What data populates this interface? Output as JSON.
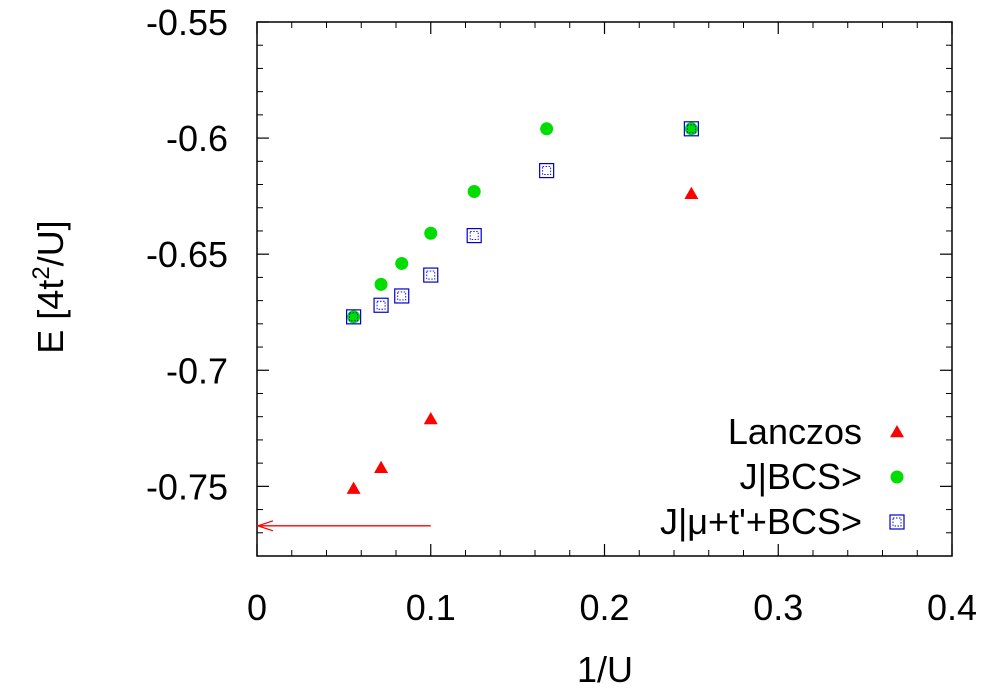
{
  "chart_data": {
    "type": "scatter",
    "xlabel": "1/U",
    "ylabel_prefix": "E [4t",
    "ylabel_sup": "2",
    "ylabel_suffix": "/U]",
    "xlim": [
      0,
      0.4
    ],
    "ylim": [
      -0.78,
      -0.55
    ],
    "xticks": [
      0,
      0.1,
      0.2,
      0.3,
      0.4
    ],
    "xtick_labels": [
      "0",
      "0.1",
      "0.2",
      "0.3",
      "0.4"
    ],
    "yticks": [
      -0.55,
      -0.6,
      -0.65,
      -0.7,
      -0.75
    ],
    "ytick_labels": [
      "-0.55",
      "-0.6",
      "-0.65",
      "-0.7",
      "-0.75"
    ],
    "legend_position": "bottom-right",
    "series": [
      {
        "name": "Lanczos",
        "marker": "triangle",
        "color": "#ff0000",
        "x": [
          0.0556,
          0.0714,
          0.1,
          0.25
        ],
        "y": [
          -0.751,
          -0.742,
          -0.721,
          -0.624
        ]
      },
      {
        "name": "J|BCS>",
        "marker": "circle",
        "color": "#00dd00",
        "x": [
          0.0556,
          0.0714,
          0.0833,
          0.1,
          0.125,
          0.1667,
          0.25
        ],
        "y": [
          -0.677,
          -0.663,
          -0.654,
          -0.641,
          -0.623,
          -0.596,
          -0.596
        ]
      },
      {
        "name": "J|μ+t'+BCS>",
        "marker": "square",
        "color": "#0000cc",
        "x": [
          0.0556,
          0.0714,
          0.0833,
          0.1,
          0.125,
          0.1667,
          0.25
        ],
        "y": [
          -0.677,
          -0.672,
          -0.668,
          -0.659,
          -0.642,
          -0.614,
          -0.596
        ]
      }
    ],
    "annotations": [
      {
        "type": "arrow",
        "color": "#ff0000",
        "x_from": 0.1,
        "x_to": 0,
        "y": -0.767
      }
    ]
  }
}
